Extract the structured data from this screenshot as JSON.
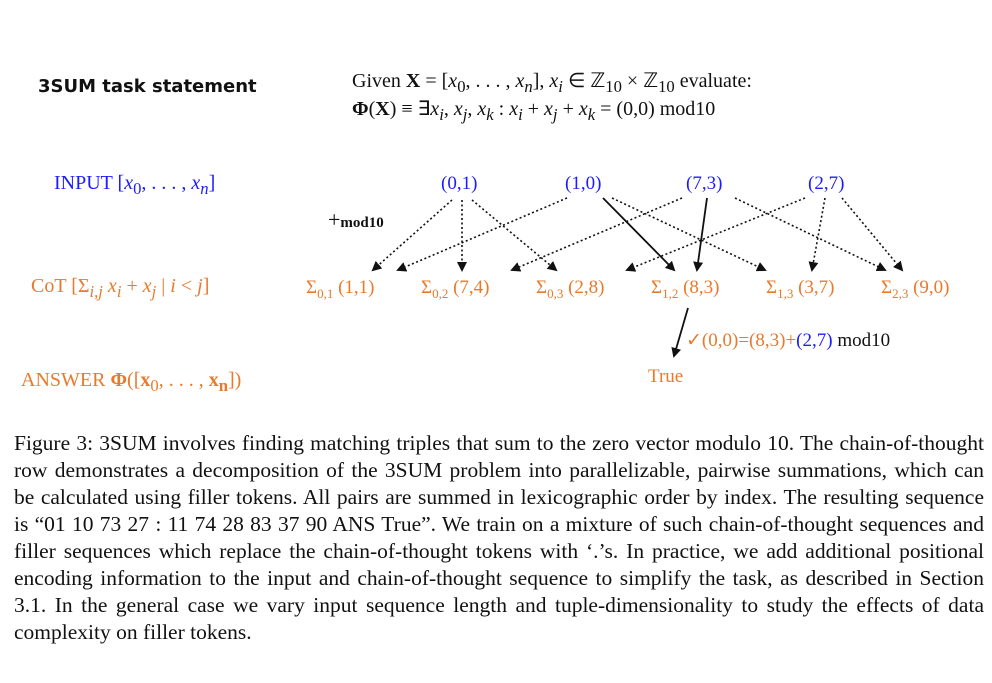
{
  "task_title": "3SUM task statement",
  "statement_line1": "Given X = [x0, . . . , xn], xi ∈ Z10 × Z10 evaluate:",
  "statement_line2": "Φ(X) ≡ ∃xi, xj, xk : xi + xj + xk = (0,0) mod10",
  "rows": {
    "input_label": "INPUT [x0, . . . , xn]",
    "cot_label": "CoT [Σi,j xi + xj | i < j]",
    "answer_label": "ANSWER Φ([x0, . . . , xn])"
  },
  "inputs": [
    "(0,1)",
    "(1,0)",
    "(7,3)",
    "(2,7)"
  ],
  "plus_label": "+mod10",
  "cot_items": [
    {
      "sigma": "Σ0,1",
      "value": "(1,1)"
    },
    {
      "sigma": "Σ0,2",
      "value": "(7,4)"
    },
    {
      "sigma": "Σ0,3",
      "value": "(2,8)"
    },
    {
      "sigma": "Σ1,2",
      "value": "(8,3)"
    },
    {
      "sigma": "Σ1,3",
      "value": "(3,7)"
    },
    {
      "sigma": "Σ2,3",
      "value": "(9,0)"
    }
  ],
  "check": {
    "mark": "✓",
    "lhs": "(0,0)=(8,3)+",
    "rhs": "(2,7)",
    "suffix": "mod10"
  },
  "answer_value": "True",
  "caption": "Figure 3: 3SUM involves finding matching triples that sum to the zero vector modulo 10. The chain-of-thought row demonstrates a decomposition of the 3SUM problem into parallelizable, pairwise summations, which can be calculated using filler tokens. All pairs are summed in lexicographic order by index. The resulting sequence is “01 10 73 27 : 11 74 28 83 37 90 ANS True”. We train on a mixture of such chain-of-thought sequences and filler sequences which replace the chain-of-thought tokens with ‘.’s. In practice, we add additional positional encoding information to the input and chain-of-thought sequence to simplify the task, as described in Section 3.1. In the general case we vary input sequence length and tuple-dimensionality to study the effects of data complexity on filler tokens."
}
